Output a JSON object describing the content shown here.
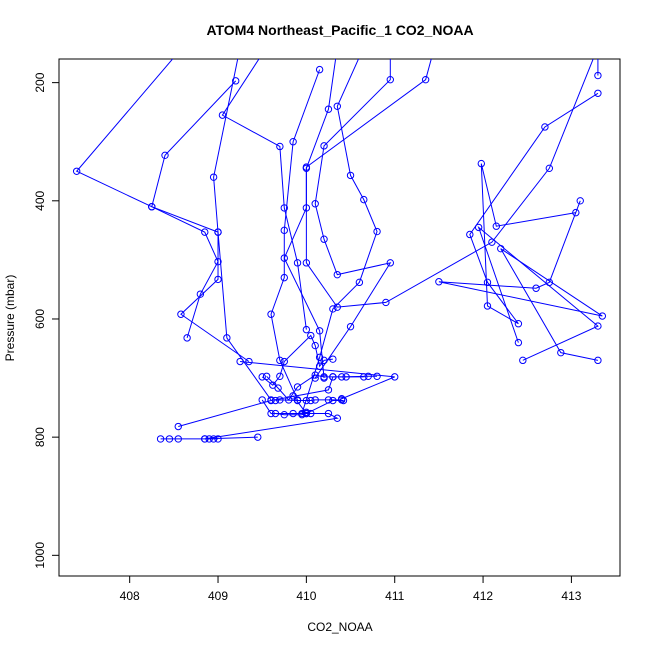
{
  "chart_data": {
    "type": "scatter",
    "title": "ATOM4 Northeast_Pacific_1 CO2_NOAA",
    "xlabel": "CO2_NOAA",
    "ylabel": "Pressure (mbar)",
    "xlim": [
      407.2,
      413.55
    ],
    "ylim": [
      1035,
      160
    ],
    "y_reversed": true,
    "x_ticks": [
      408,
      409,
      410,
      411,
      412,
      413
    ],
    "y_ticks": [
      200,
      400,
      600,
      800,
      1000
    ],
    "grid": false,
    "legend": "none",
    "series": [
      {
        "values": [
          [
            408.6,
            140
          ],
          [
            407.4,
            350
          ],
          [
            408.25,
            410
          ],
          [
            408.85,
            453
          ],
          [
            409.0,
            503
          ],
          [
            408.8,
            558
          ],
          [
            408.65,
            632
          ]
        ]
      },
      {
        "values": [
          [
            409.2,
            197
          ],
          [
            408.4,
            323
          ],
          [
            408.25,
            410
          ],
          [
            409.0,
            453
          ],
          [
            409.0,
            533
          ],
          [
            408.58,
            592
          ],
          [
            409.35,
            672
          ]
        ]
      },
      {
        "values": [
          [
            409.25,
            140
          ],
          [
            408.95,
            360
          ],
          [
            409.0,
            453
          ],
          [
            409.1,
            632
          ],
          [
            409.6,
            737
          ]
        ]
      },
      {
        "values": [
          [
            409.55,
            140
          ],
          [
            409.05,
            255
          ],
          [
            409.7,
            308
          ],
          [
            409.75,
            412
          ],
          [
            409.9,
            505
          ],
          [
            410.0,
            618
          ]
        ]
      },
      {
        "values": [
          [
            410.15,
            178
          ],
          [
            409.85,
            300
          ],
          [
            409.75,
            450
          ],
          [
            409.75,
            530
          ],
          [
            409.6,
            592
          ],
          [
            409.7,
            670
          ],
          [
            409.9,
            737
          ]
        ]
      },
      {
        "values": [
          [
            410.35,
            140
          ],
          [
            410.25,
            245
          ],
          [
            410.0,
            345
          ],
          [
            410.0,
            412
          ],
          [
            409.75,
            497
          ],
          [
            410.15,
            620
          ],
          [
            410.2,
            700
          ]
        ]
      },
      {
        "values": [
          [
            410.65,
            140
          ],
          [
            410.35,
            240
          ],
          [
            410.5,
            357
          ],
          [
            410.65,
            398
          ],
          [
            410.8,
            452
          ],
          [
            410.6,
            538
          ],
          [
            410.3,
            583
          ],
          [
            410.15,
            665
          ],
          [
            409.95,
            760
          ]
        ]
      },
      {
        "values": [
          [
            410.95,
            140
          ],
          [
            410.95,
            195
          ],
          [
            410.2,
            307
          ],
          [
            410.1,
            405
          ],
          [
            410.2,
            465
          ],
          [
            410.35,
            525
          ],
          [
            410.95,
            505
          ],
          [
            410.5,
            613
          ],
          [
            410.1,
            700
          ]
        ]
      },
      {
        "values": [
          [
            411.45,
            140
          ],
          [
            411.35,
            195
          ],
          [
            410.0,
            343
          ],
          [
            410.0,
            505
          ],
          [
            410.35,
            580
          ],
          [
            410.9,
            572
          ],
          [
            412.1,
            470
          ],
          [
            412.75,
            345
          ],
          [
            413.3,
            140
          ],
          [
            413.3,
            188
          ]
        ]
      },
      {
        "values": [
          [
            413.3,
            218
          ],
          [
            412.7,
            275
          ],
          [
            411.85,
            457
          ],
          [
            412.05,
            538
          ],
          [
            412.4,
            608
          ],
          [
            412.05,
            578
          ],
          [
            411.98,
            337
          ],
          [
            412.15,
            443
          ],
          [
            413.05,
            420
          ]
        ]
      },
      {
        "values": [
          [
            413.1,
            400
          ],
          [
            412.75,
            538
          ],
          [
            412.6,
            548
          ],
          [
            411.5,
            537
          ],
          [
            413.35,
            595
          ],
          [
            412.2,
            481
          ],
          [
            412.88,
            657
          ],
          [
            413.3,
            670
          ]
        ]
      },
      {
        "values": [
          [
            412.45,
            670
          ],
          [
            413.3,
            612
          ],
          [
            411.95,
            445
          ],
          [
            412.4,
            640
          ]
        ]
      },
      {
        "values": [
          [
            409.25,
            672
          ],
          [
            411.0,
            698
          ],
          [
            410.4,
            735
          ]
        ]
      },
      {
        "values": [
          [
            409.5,
            737
          ],
          [
            409.6,
            760
          ],
          [
            409.85,
            760
          ],
          [
            410.0,
            760
          ],
          [
            410.3,
            738
          ],
          [
            410.42,
            738
          ]
        ]
      },
      {
        "values": [
          [
            409.55,
            697
          ],
          [
            409.68,
            717
          ],
          [
            409.8,
            737
          ],
          [
            409.9,
            715
          ],
          [
            410.1,
            695
          ],
          [
            410.2,
            698
          ],
          [
            410.3,
            698
          ],
          [
            410.45,
            698
          ],
          [
            410.65,
            698
          ]
        ]
      },
      {
        "values": [
          [
            409.85,
            730
          ],
          [
            410.0,
            760
          ],
          [
            410.25,
            760
          ],
          [
            410.35,
            768
          ],
          [
            408.85,
            803
          ],
          [
            409.45,
            800
          ]
        ]
      },
      {
        "values": [
          [
            408.35,
            803
          ],
          [
            408.45,
            803
          ],
          [
            408.55,
            803
          ],
          [
            408.85,
            803
          ],
          [
            408.9,
            803
          ],
          [
            408.95,
            803
          ],
          [
            409.0,
            803
          ]
        ]
      },
      {
        "values": [
          [
            408.55,
            782
          ],
          [
            409.6,
            738
          ],
          [
            410.25,
            720
          ],
          [
            410.3,
            698
          ],
          [
            410.4,
            698
          ],
          [
            410.7,
            697
          ],
          [
            410.8,
            697
          ]
        ]
      },
      {
        "values": [
          [
            409.65,
            738
          ],
          [
            409.7,
            737
          ],
          [
            409.9,
            738
          ],
          [
            410.0,
            738
          ],
          [
            410.05,
            738
          ],
          [
            410.1,
            737
          ],
          [
            410.25,
            737
          ],
          [
            410.4,
            737
          ]
        ]
      },
      {
        "values": [
          [
            409.65,
            760
          ],
          [
            409.75,
            762
          ],
          [
            409.95,
            762
          ],
          [
            410.0,
            758
          ],
          [
            410.05,
            760
          ]
        ]
      },
      {
        "values": [
          [
            409.5,
            698
          ],
          [
            409.62,
            712
          ],
          [
            409.7,
            697
          ],
          [
            409.75,
            672
          ],
          [
            410.05,
            628
          ],
          [
            410.1,
            645
          ],
          [
            410.15,
            680
          ],
          [
            410.2,
            670
          ],
          [
            410.3,
            668
          ]
        ]
      }
    ]
  }
}
